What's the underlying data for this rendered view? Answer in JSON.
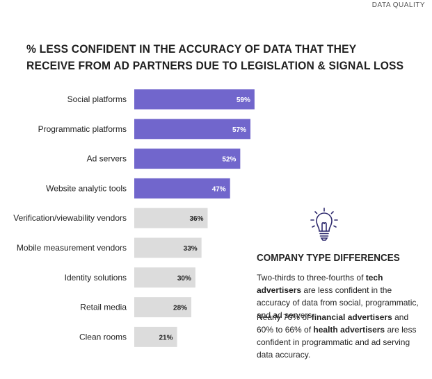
{
  "tag": "DATA QUALITY",
  "title_line1": "% LESS CONFIDENT IN THE ACCURACY OF DATA THAT THEY",
  "title_line2": "RECEIVE FROM AD PARTNERS DUE TO LEGISLATION & SIGNAL LOSS",
  "colors": {
    "highlight": "#7166cc",
    "other": "#dcdcdc",
    "highlight_text": "#ffffff",
    "other_text": "#222222"
  },
  "chart_data": {
    "type": "bar",
    "orientation": "horizontal",
    "title": "% LESS CONFIDENT IN THE ACCURACY OF DATA THAT THEY RECEIVE FROM AD PARTNERS DUE TO LEGISLATION & SIGNAL LOSS",
    "categories": [
      "Social platforms",
      "Programmatic platforms",
      "Ad servers",
      "Website analytic tools",
      "Verification/viewability vendors",
      "Mobile measurement vendors",
      "Identity solutions",
      "Retail media",
      "Clean rooms"
    ],
    "values": [
      59,
      57,
      52,
      47,
      36,
      33,
      30,
      28,
      21
    ],
    "value_labels": [
      "59%",
      "57%",
      "52%",
      "47%",
      "36%",
      "33%",
      "30%",
      "28%",
      "21%"
    ],
    "highlighted": [
      true,
      true,
      true,
      true,
      false,
      false,
      false,
      false,
      false
    ],
    "xlim": [
      0,
      100
    ],
    "xlabel": "",
    "ylabel": ""
  },
  "side": {
    "heading": "COMPANY TYPE DIFFERENCES",
    "p1": [
      {
        "text": "Two-thirds  to three-fourths of ",
        "bold": false
      },
      {
        "text": "tech advertisers",
        "bold": true
      },
      {
        "text": " are less confident in the accuracy of data from social, programmatic, and ad servers.",
        "bold": false
      }
    ],
    "p2": [
      {
        "text": "Nearly 70% of ",
        "bold": false
      },
      {
        "text": "financial advertisers",
        "bold": true
      },
      {
        "text": " and 60% to 66% of ",
        "bold": false
      },
      {
        "text": "health advertisers",
        "bold": true
      },
      {
        "text": " are less confident in programmatic and ad serving data accuracy.",
        "bold": false
      }
    ],
    "icon": "lightbulb-icon"
  }
}
